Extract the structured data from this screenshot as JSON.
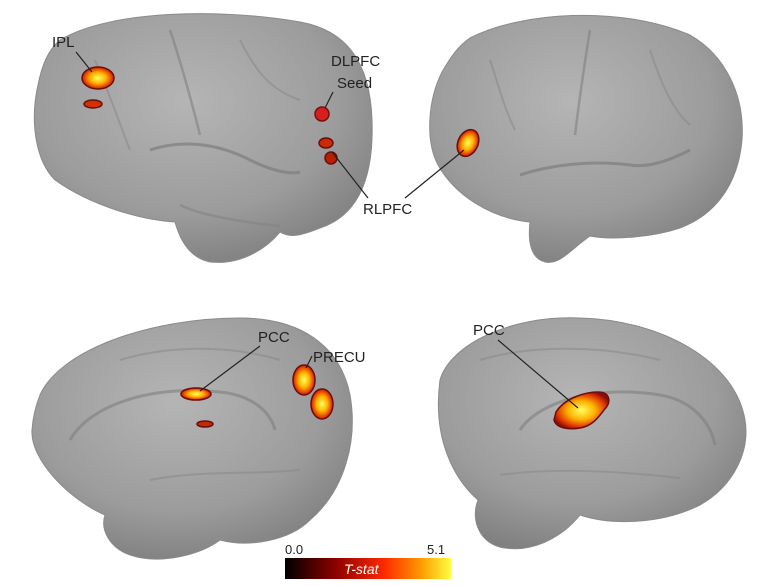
{
  "figure": {
    "views": [
      {
        "name": "left lateral hemisphere",
        "labels": [
          "IPL",
          "DLPFC",
          "Seed",
          "RLPFC"
        ]
      },
      {
        "name": "right lateral hemisphere",
        "labels": []
      },
      {
        "name": "left medial hemisphere",
        "labels": [
          "PCC",
          "PRECU"
        ]
      },
      {
        "name": "right medial hemisphere",
        "labels": [
          "PCC"
        ]
      }
    ],
    "labels": {
      "ipl": "IPL",
      "dlpfc": "DLPFC",
      "seed": "Seed",
      "rlpfc": "RLPFC",
      "pcc_left": "PCC",
      "precu": "PRECU",
      "pcc_right": "PCC"
    },
    "colorbar": {
      "min": "0.0",
      "max": "5.1",
      "label": "T-stat",
      "colors": [
        "#000000",
        "#8b0000",
        "#ff2a00",
        "#ff9a00",
        "#ffff40"
      ]
    },
    "colors": {
      "brain": "#9a9a9a",
      "brain_dark": "#6e6e6e",
      "brain_light": "#b3b3b3",
      "seed": "#d42020",
      "activation_outline": "#6b0e0e",
      "activation_hot": "#ffd21a",
      "leader_line": "#222222"
    }
  }
}
